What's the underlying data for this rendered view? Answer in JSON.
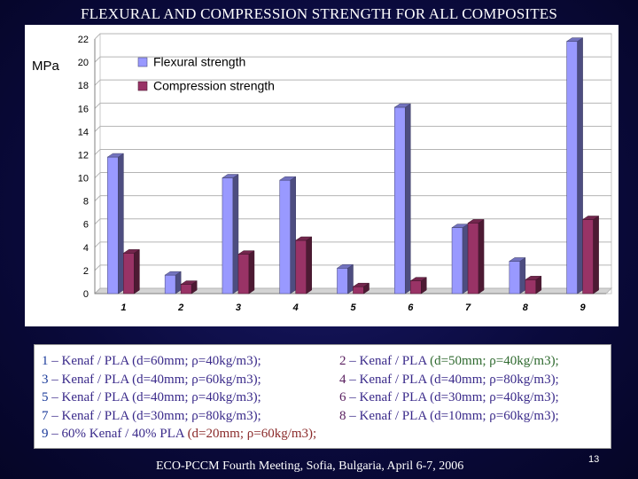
{
  "slide": {
    "title": "FLEXURAL AND COMPRESSION STRENGTH FOR ALL COMPOSITES",
    "footer": "ECO-PCCM Fourth Meeting, Sofia, Bulgaria, April 6-7, 2006",
    "page_number": "13"
  },
  "chart_data": {
    "type": "bar",
    "ylabel": "MPa",
    "categories": [
      "1",
      "2",
      "3",
      "4",
      "5",
      "6",
      "7",
      "8",
      "9"
    ],
    "series": [
      {
        "name": "Flexural strength",
        "color": "#9999ff",
        "values": [
          11.8,
          1.6,
          10.0,
          9.8,
          2.2,
          16.1,
          5.7,
          2.8,
          21.8
        ]
      },
      {
        "name": "Compression strength",
        "color": "#993366",
        "values": [
          3.5,
          0.8,
          3.4,
          4.6,
          0.6,
          1.1,
          6.1,
          1.2,
          6.4
        ]
      }
    ],
    "ylim": [
      0,
      22
    ],
    "yticks": [
      0,
      2,
      4,
      6,
      8,
      10,
      12,
      14,
      16,
      18,
      20,
      22
    ],
    "grid": true,
    "legend_position": "top-left"
  },
  "legend_rows": [
    [
      {
        "num": "1",
        "text": "– Kenaf / PLA",
        "params": "(d=60mm; ρ=40kg/m3);"
      },
      {
        "num": "2",
        "text": "– Kenaf / PLA",
        "params": "(d=50mm; ρ=40kg/m3);"
      }
    ],
    [
      {
        "num": "3",
        "text": "– Kenaf / PLA",
        "params": "(d=40mm; ρ=60kg/m3);"
      },
      {
        "num": "4",
        "text": "– Kenaf / PLA",
        "params": "(d=40mm; ρ=80kg/m3);"
      }
    ],
    [
      {
        "num": "5",
        "text": "– Kenaf / PLA",
        "params": "(d=40mm; ρ=40kg/m3);"
      },
      {
        "num": "6",
        "text": "– Kenaf / PLA",
        "params": "(d=30mm; ρ=40kg/m3);"
      }
    ],
    [
      {
        "num": "7",
        "text": "– Kenaf / PLA",
        "params": "(d=30mm; ρ=80kg/m3);"
      },
      {
        "num": "8",
        "text": "– Kenaf / PLA",
        "params": "(d=10mm; ρ=60kg/m3);"
      }
    ],
    [
      {
        "num": "9",
        "text": "– 60% Kenaf / 40% PLA",
        "params": "(d=20mm; ρ=60kg/m3);"
      }
    ]
  ]
}
